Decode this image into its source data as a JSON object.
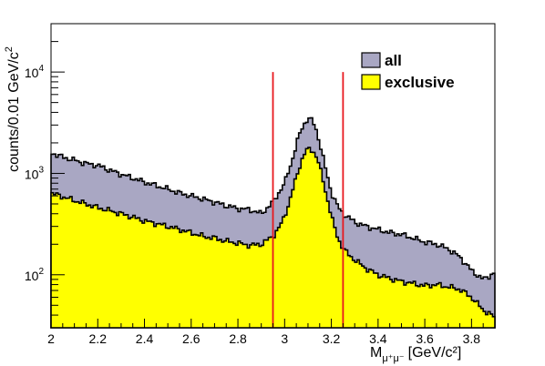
{
  "chart_data": {
    "type": "area",
    "title": "",
    "xlabel": "[GeV/c²]",
    "xlabel_symbol": "M",
    "xlabel_subscript": "μ⁺μ⁻",
    "ylabel": "counts/0.01 GeV/c",
    "ylabel_superscript": "2",
    "xlim": [
      2.0,
      3.9
    ],
    "ylim": [
      30,
      30000
    ],
    "yscale": "log",
    "grid": false,
    "legend_position": "top-right",
    "x_ticks": [
      2.0,
      2.2,
      2.4,
      2.6,
      2.8,
      3.0,
      3.2,
      3.4,
      3.6,
      3.8
    ],
    "x_tick_labels": [
      "2",
      "2.2",
      "2.4",
      "2.6",
      "2.8",
      "3",
      "3.2",
      "3.4",
      "3.6",
      "3.8"
    ],
    "y_major_ticks": [
      100,
      1000,
      10000
    ],
    "y_tick_labels": [
      {
        "base": "10",
        "exp": "2"
      },
      {
        "base": "10",
        "exp": "3"
      },
      {
        "base": "10",
        "exp": "4"
      }
    ],
    "vertical_lines": [
      {
        "x": 2.95,
        "y_top": 10000,
        "color": "#e8181e"
      },
      {
        "x": 3.25,
        "y_top": 10000,
        "color": "#e8181e"
      }
    ],
    "series": [
      {
        "name": "all",
        "color": "#a9a7c3",
        "x": [
          2.0,
          2.05,
          2.1,
          2.15,
          2.2,
          2.25,
          2.3,
          2.35,
          2.4,
          2.45,
          2.5,
          2.55,
          2.6,
          2.65,
          2.7,
          2.75,
          2.8,
          2.85,
          2.9,
          2.95,
          3.0,
          3.03,
          3.06,
          3.08,
          3.1,
          3.12,
          3.14,
          3.16,
          3.18,
          3.2,
          3.23,
          3.25,
          3.28,
          3.3,
          3.35,
          3.4,
          3.45,
          3.5,
          3.55,
          3.6,
          3.65,
          3.7,
          3.75,
          3.8,
          3.85,
          3.9
        ],
        "y": [
          1600,
          1450,
          1350,
          1250,
          1200,
          1080,
          980,
          900,
          820,
          760,
          700,
          640,
          600,
          560,
          520,
          480,
          450,
          440,
          400,
          520,
          800,
          1300,
          2300,
          3000,
          3500,
          3300,
          2500,
          1600,
          1000,
          650,
          460,
          400,
          360,
          330,
          300,
          280,
          260,
          250,
          230,
          210,
          200,
          180,
          150,
          110,
          90,
          105
        ]
      },
      {
        "name": "exclusive",
        "color": "#ffff00",
        "x": [
          2.0,
          2.05,
          2.1,
          2.15,
          2.2,
          2.25,
          2.3,
          2.35,
          2.4,
          2.45,
          2.5,
          2.55,
          2.6,
          2.65,
          2.7,
          2.75,
          2.8,
          2.85,
          2.9,
          2.95,
          2.98,
          3.0,
          3.02,
          3.04,
          3.06,
          3.08,
          3.1,
          3.12,
          3.14,
          3.16,
          3.18,
          3.2,
          3.22,
          3.24,
          3.26,
          3.3,
          3.35,
          3.4,
          3.45,
          3.5,
          3.55,
          3.6,
          3.65,
          3.7,
          3.75,
          3.8,
          3.85,
          3.9
        ],
        "y": [
          640,
          590,
          540,
          500,
          460,
          430,
          400,
          370,
          340,
          320,
          300,
          280,
          260,
          240,
          230,
          215,
          205,
          195,
          200,
          240,
          300,
          380,
          520,
          760,
          1100,
          1500,
          1750,
          1700,
          1400,
          950,
          600,
          380,
          260,
          200,
          170,
          140,
          115,
          100,
          92,
          86,
          82,
          78,
          80,
          76,
          72,
          60,
          45,
          38
        ]
      }
    ]
  }
}
